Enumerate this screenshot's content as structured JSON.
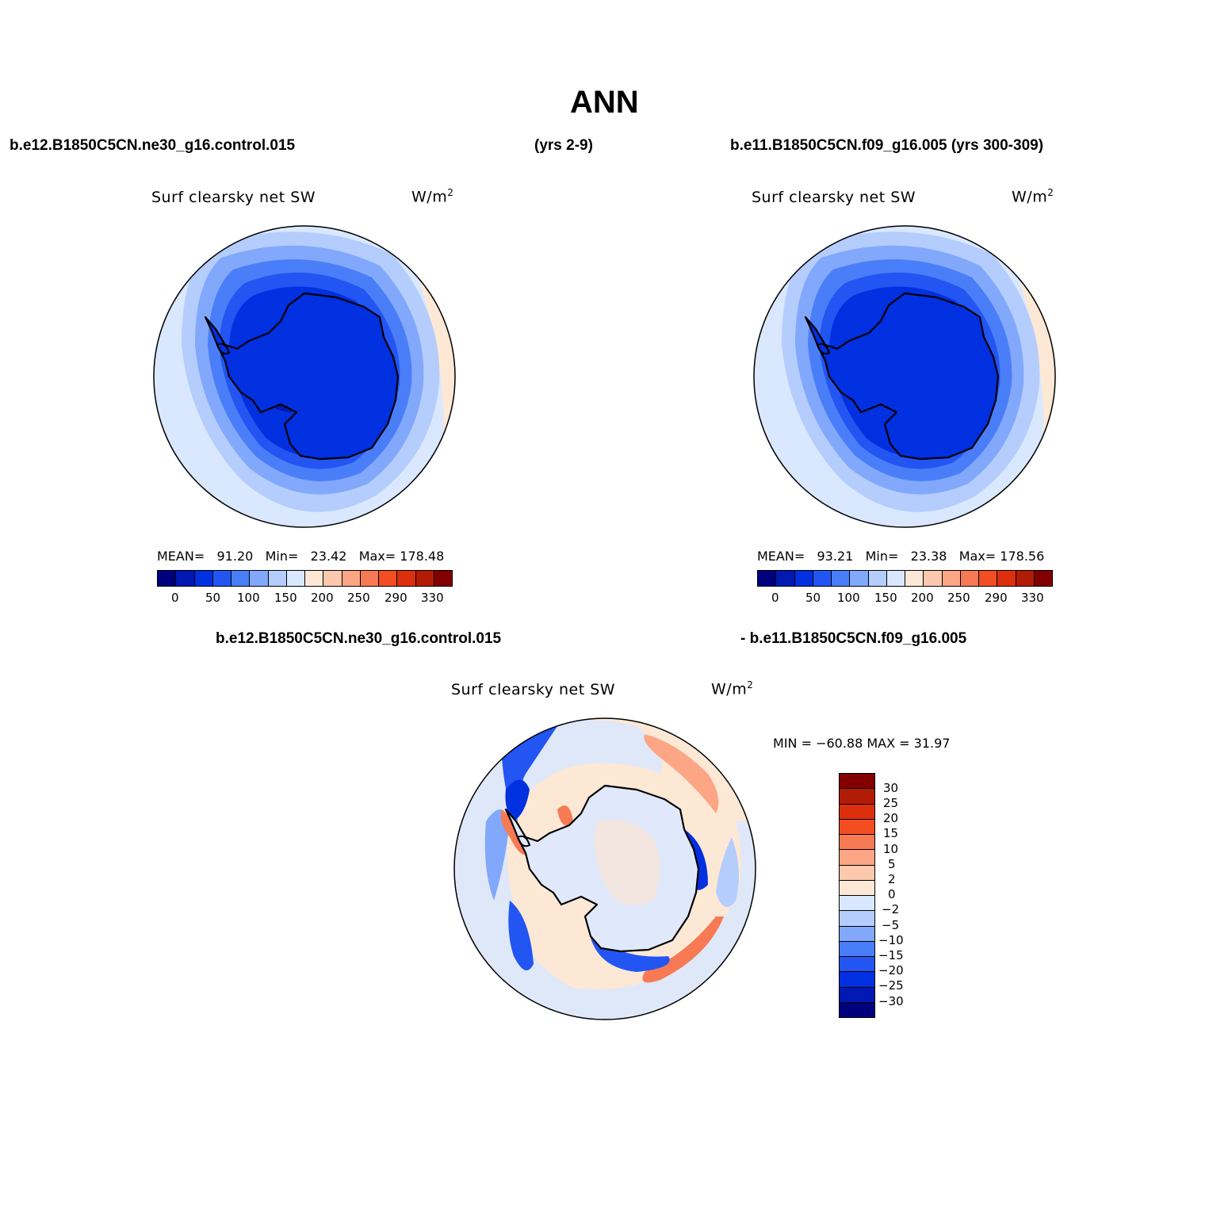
{
  "figure": {
    "title": "ANN",
    "case1_label": "b.e12.B1850C5CN.ne30_g16.control.015",
    "case1_years": "(yrs 2-9)",
    "case2_label": "b.e11.B1850C5CN.f09_g16.005 (yrs 300-309)",
    "diff_label_left": "b.e12.B1850C5CN.ne30_g16.control.015",
    "diff_label_right": "- b.e11.B1850C5CN.f09_g16.005"
  },
  "colors": {
    "palette": [
      "#00007f",
      "#0019b3",
      "#0030e0",
      "#2255f2",
      "#4a7ef8",
      "#82a8fc",
      "#b4cdfd",
      "#d9e8fe",
      "#fde8d6",
      "#fdc9ae",
      "#fda686",
      "#f77a55",
      "#f24e22",
      "#dc300d",
      "#b21c05",
      "#820000"
    ],
    "coast": "#000000"
  },
  "panels": [
    {
      "id": "control",
      "variable": "Surf  clearsky  net  SW",
      "units": "W/m",
      "units_sup": "2",
      "stats": {
        "mean_label": "MEAN=",
        "mean": "91.20",
        "min_label": "Min=",
        "min": "23.42",
        "max_label": "Max=",
        "max": "178.48"
      },
      "colorbar_labels": [
        "0",
        "50",
        "100",
        "150",
        "200",
        "250",
        "290",
        "330"
      ]
    },
    {
      "id": "reference",
      "variable": "Surf  clearsky  net  SW",
      "units": "W/m",
      "units_sup": "2",
      "stats": {
        "mean_label": "MEAN=",
        "mean": "93.21",
        "min_label": "Min=",
        "min": "23.38",
        "max_label": "Max=",
        "max": "178.56"
      },
      "colorbar_labels": [
        "0",
        "50",
        "100",
        "150",
        "200",
        "250",
        "290",
        "330"
      ]
    },
    {
      "id": "difference",
      "variable": "Surf  clearsky  net  SW",
      "units": "W/m",
      "units_sup": "2",
      "stats_text": "MIN = −60.88  MAX =   31.97",
      "colorbar_labels": [
        "30",
        "25",
        "20",
        "15",
        "10",
        "5",
        "2",
        "0",
        "−2",
        "−5",
        "−10",
        "−15",
        "−20",
        "−25",
        "−30"
      ]
    }
  ]
}
